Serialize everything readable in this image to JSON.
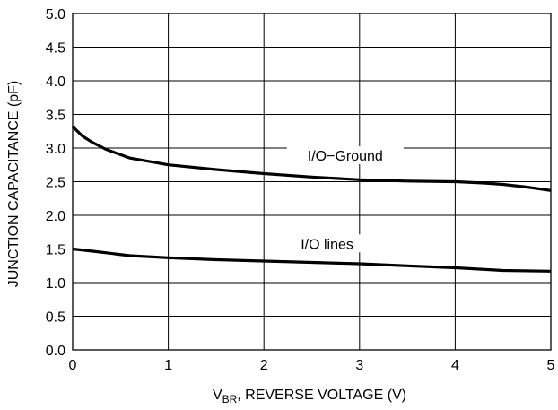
{
  "chart_data": {
    "type": "line",
    "title": "",
    "xlabel": {
      "main": "V",
      "sub": "BR",
      "rest": ", REVERSE VOLTAGE (V)"
    },
    "ylabel": "JUNCTION CAPACITANCE (pF)",
    "xlim": [
      0,
      5
    ],
    "ylim": [
      0,
      5
    ],
    "xticks": [
      "0",
      "1",
      "2",
      "3",
      "4",
      "5"
    ],
    "yticks": [
      "0.0",
      "0.5",
      "1.0",
      "1.5",
      "2.0",
      "2.5",
      "3.0",
      "3.5",
      "4.0",
      "4.5",
      "5.0"
    ],
    "grid": true,
    "series": [
      {
        "name": "I/O−Ground",
        "x": [
          0,
          0.1,
          0.2,
          0.35,
          0.6,
          1.0,
          1.5,
          2.0,
          2.5,
          3.0,
          3.5,
          4.0,
          4.3,
          4.5,
          4.75,
          5.0
        ],
        "y": [
          3.32,
          3.18,
          3.09,
          2.98,
          2.85,
          2.75,
          2.68,
          2.62,
          2.57,
          2.53,
          2.51,
          2.5,
          2.48,
          2.46,
          2.42,
          2.37
        ]
      },
      {
        "name": "I/O lines",
        "x": [
          0,
          0.25,
          0.6,
          1.0,
          1.5,
          2.0,
          2.5,
          3.0,
          3.5,
          4.0,
          4.5,
          5.0
        ],
        "y": [
          1.5,
          1.46,
          1.4,
          1.37,
          1.34,
          1.32,
          1.3,
          1.28,
          1.25,
          1.22,
          1.18,
          1.17
        ]
      }
    ]
  }
}
